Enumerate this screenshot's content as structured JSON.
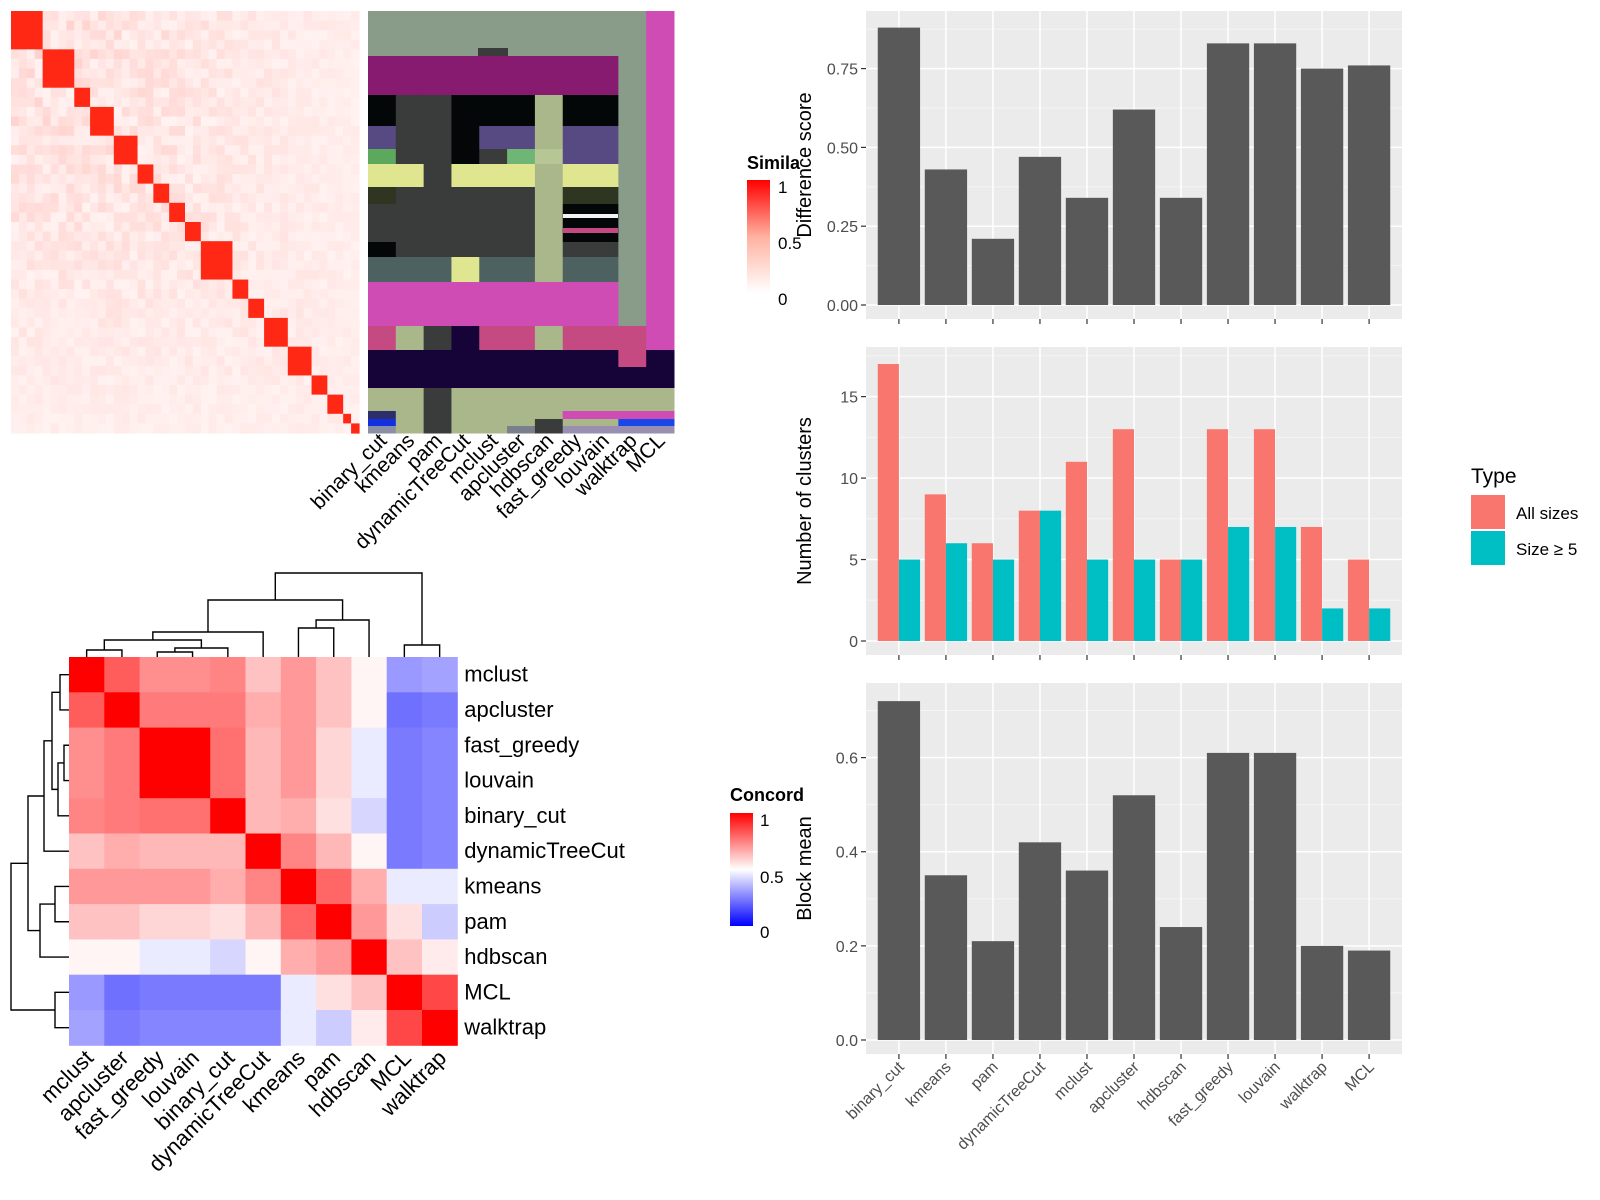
{
  "methods": [
    "binary_cut",
    "kmeans",
    "pam",
    "dynamicTreeCut",
    "mclust",
    "apcluster",
    "hdbscan",
    "fast_greedy",
    "louvain",
    "walktrap",
    "MCL"
  ],
  "similarity_panel": {
    "legend_title": "Simila",
    "legend_ticks": [
      "1",
      "0.5",
      "0"
    ],
    "column_labels": [
      "binary_cut",
      "kmeans",
      "pam",
      "dynamicTreeCut",
      "mclust",
      "apcluster",
      "hdbscan",
      "fast_greedy",
      "louvain",
      "walktrap",
      "MCL"
    ],
    "block_sizes": [
      4,
      4,
      2,
      3,
      3,
      2,
      2,
      2,
      2,
      4,
      2,
      2,
      3,
      3,
      2,
      2,
      1,
      1
    ]
  },
  "concordance_panel": {
    "legend_title": "Concord",
    "legend_ticks": [
      "1",
      "0.5",
      "0"
    ],
    "order": [
      "mclust",
      "apcluster",
      "fast_greedy",
      "louvain",
      "binary_cut",
      "dynamicTreeCut",
      "kmeans",
      "pam",
      "hdbscan",
      "MCL",
      "walktrap"
    ],
    "matrix": [
      [
        1.0,
        0.82,
        0.72,
        0.72,
        0.74,
        0.62,
        0.7,
        0.62,
        0.52,
        0.3,
        0.32
      ],
      [
        0.82,
        1.0,
        0.76,
        0.76,
        0.76,
        0.66,
        0.7,
        0.62,
        0.52,
        0.22,
        0.24
      ],
      [
        0.72,
        0.76,
        1.0,
        1.0,
        0.78,
        0.64,
        0.7,
        0.58,
        0.46,
        0.24,
        0.26
      ],
      [
        0.72,
        0.76,
        1.0,
        1.0,
        0.78,
        0.64,
        0.7,
        0.58,
        0.46,
        0.24,
        0.26
      ],
      [
        0.74,
        0.76,
        0.78,
        0.78,
        1.0,
        0.64,
        0.66,
        0.56,
        0.42,
        0.24,
        0.26
      ],
      [
        0.62,
        0.66,
        0.64,
        0.64,
        0.64,
        1.0,
        0.74,
        0.64,
        0.52,
        0.24,
        0.26
      ],
      [
        0.7,
        0.7,
        0.7,
        0.7,
        0.66,
        0.74,
        1.0,
        0.8,
        0.66,
        0.46,
        0.46
      ],
      [
        0.62,
        0.62,
        0.58,
        0.58,
        0.56,
        0.64,
        0.8,
        1.0,
        0.7,
        0.56,
        0.4
      ],
      [
        0.52,
        0.52,
        0.46,
        0.46,
        0.42,
        0.52,
        0.66,
        0.7,
        1.0,
        0.62,
        0.54
      ],
      [
        0.3,
        0.22,
        0.24,
        0.24,
        0.24,
        0.24,
        0.46,
        0.56,
        0.62,
        1.0,
        0.86
      ],
      [
        0.32,
        0.24,
        0.26,
        0.26,
        0.26,
        0.26,
        0.46,
        0.4,
        0.54,
        0.86,
        1.0
      ]
    ]
  },
  "chart_data": [
    {
      "type": "bar",
      "title": "",
      "xlabel": "",
      "ylabel": "Difference score",
      "ylim": [
        0,
        0.92
      ],
      "yticks": [
        "0.00",
        "0.25",
        "0.50",
        "0.75"
      ],
      "ytick_values": [
        0,
        0.25,
        0.5,
        0.75
      ],
      "categories": [
        "binary_cut",
        "kmeans",
        "pam",
        "dynamicTreeCut",
        "mclust",
        "apcluster",
        "hdbscan",
        "fast_greedy",
        "louvain",
        "walktrap",
        "MCL"
      ],
      "values": [
        0.88,
        0.43,
        0.21,
        0.47,
        0.34,
        0.62,
        0.34,
        0.83,
        0.83,
        0.75,
        0.76
      ]
    },
    {
      "type": "bar",
      "title": "",
      "xlabel": "",
      "ylabel": "Number of clusters",
      "ylim": [
        0,
        17.8
      ],
      "yticks": [
        "0",
        "5",
        "10",
        "15"
      ],
      "ytick_values": [
        0,
        5,
        10,
        15
      ],
      "categories": [
        "binary_cut",
        "kmeans",
        "pam",
        "dynamicTreeCut",
        "mclust",
        "apcluster",
        "hdbscan",
        "fast_greedy",
        "louvain",
        "walktrap",
        "MCL"
      ],
      "legend_title": "Type",
      "series": [
        {
          "name": "All sizes",
          "color": "#F8766D",
          "values": [
            17,
            9,
            6,
            8,
            11,
            13,
            5,
            13,
            13,
            7,
            5
          ]
        },
        {
          "name": "Size ≥ 5",
          "color": "#00BFC4",
          "values": [
            5,
            6,
            5,
            8,
            5,
            5,
            5,
            7,
            7,
            2,
            2
          ]
        }
      ]
    },
    {
      "type": "bar",
      "title": "",
      "xlabel": "",
      "ylabel": "Block mean",
      "ylim": [
        0,
        0.75
      ],
      "yticks": [
        "0.0",
        "0.2",
        "0.4",
        "0.6"
      ],
      "ytick_values": [
        0,
        0.2,
        0.4,
        0.6
      ],
      "categories": [
        "binary_cut",
        "kmeans",
        "pam",
        "dynamicTreeCut",
        "mclust",
        "apcluster",
        "hdbscan",
        "fast_greedy",
        "louvain",
        "walktrap",
        "MCL"
      ],
      "values": [
        0.72,
        0.35,
        0.21,
        0.42,
        0.36,
        0.52,
        0.24,
        0.61,
        0.61,
        0.2,
        0.19
      ]
    }
  ]
}
